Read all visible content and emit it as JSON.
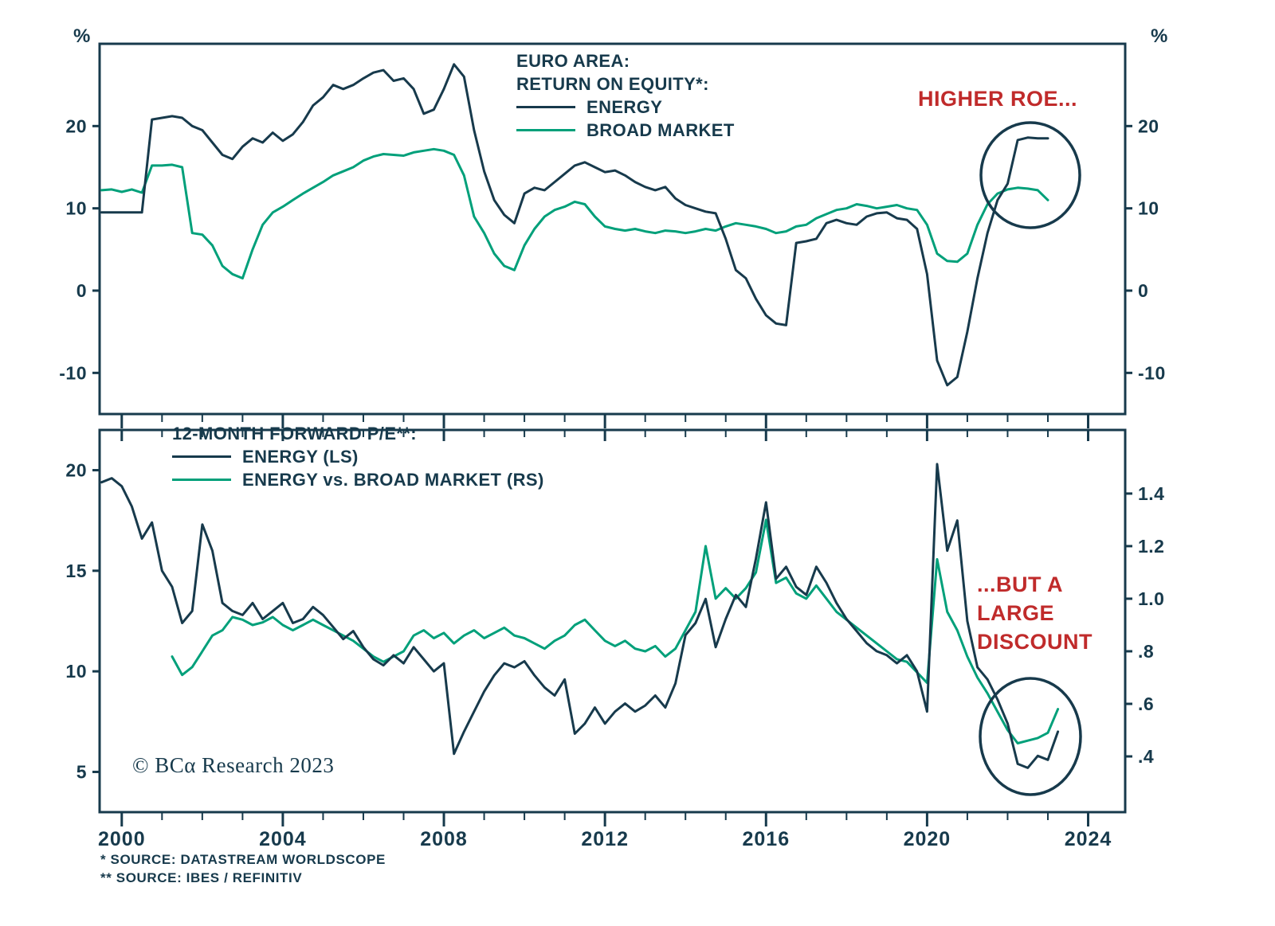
{
  "figure": {
    "background": "#ffffff",
    "colors": {
      "navy": "#173a4c",
      "teal": "#00a07a",
      "red": "#c02b2b"
    },
    "copyright": "© BCα Research 2023",
    "footnotes": [
      "*  SOURCE: DATASTREAM WORLDSCOPE",
      "** SOURCE: IBES / REFINITIV"
    ]
  },
  "annotations": {
    "higher_roe": "HIGHER ROE...",
    "discount_lines": [
      "...BUT A",
      "LARGE",
      "DISCOUNT"
    ]
  },
  "chart_data": [
    {
      "type": "line",
      "panel": "top",
      "title": "EURO AREA: RETURN ON EQUITY*:",
      "title_lines": [
        "EURO AREA:",
        "RETURN ON EQUITY*:"
      ],
      "ylabel_left": "%",
      "ylabel_right": "%",
      "xlabel": "",
      "grid": false,
      "legend_position": "top-center",
      "xlim": [
        1999.45,
        2024.92
      ],
      "ylim_left": [
        -15,
        30
      ],
      "yticks_left": [
        {
          "v": 20,
          "label": "20"
        },
        {
          "v": 10,
          "label": "10"
        },
        {
          "v": 0,
          "label": "0"
        },
        {
          "v": -10,
          "label": "-10"
        }
      ],
      "yticks_right": [
        {
          "v": 20,
          "label": "20"
        },
        {
          "v": 10,
          "label": "10"
        },
        {
          "v": 0,
          "label": "0"
        },
        {
          "v": -10,
          "label": "-10"
        }
      ],
      "x_start": 1999.5,
      "x_step": 0.25,
      "series": [
        {
          "name": "ENERGY",
          "color": "navy",
          "axis": "left",
          "values": [
            9.5,
            9.5,
            9.5,
            9.5,
            9.5,
            20.8,
            21.0,
            21.2,
            21.0,
            20.0,
            19.5,
            18.0,
            16.5,
            16.0,
            17.5,
            18.5,
            18.0,
            19.2,
            18.2,
            19.0,
            20.5,
            22.5,
            23.5,
            25.0,
            24.5,
            25.0,
            25.8,
            26.5,
            26.8,
            25.5,
            25.8,
            24.5,
            21.5,
            22.0,
            24.5,
            27.5,
            26.0,
            19.5,
            14.5,
            11.0,
            9.2,
            8.2,
            11.8,
            12.5,
            12.2,
            13.2,
            14.2,
            15.2,
            15.6,
            15.0,
            14.4,
            14.6,
            14.0,
            13.2,
            12.6,
            12.2,
            12.6,
            11.2,
            10.4,
            10.0,
            9.6,
            9.4,
            6.3,
            2.5,
            1.5,
            -1.0,
            -3.0,
            -4.0,
            -4.2,
            5.8,
            6.0,
            6.3,
            8.2,
            8.6,
            8.2,
            8.0,
            9.0,
            9.4,
            9.5,
            8.8,
            8.6,
            7.5,
            2.0,
            -8.5,
            -11.5,
            -10.5,
            -5.0,
            1.5,
            7.0,
            11.0,
            13.0,
            18.3,
            18.6,
            18.5,
            18.5
          ]
        },
        {
          "name": "BROAD MARKET",
          "color": "teal",
          "axis": "left",
          "values": [
            12.2,
            12.3,
            12.0,
            12.3,
            11.9,
            15.2,
            15.2,
            15.3,
            15.0,
            7.0,
            6.8,
            5.5,
            3.0,
            2.0,
            1.5,
            5.0,
            8.0,
            9.5,
            10.2,
            11.0,
            11.8,
            12.5,
            13.2,
            14.0,
            14.5,
            15.0,
            15.8,
            16.3,
            16.6,
            16.5,
            16.4,
            16.8,
            17.0,
            17.2,
            17.0,
            16.5,
            14.0,
            9.0,
            7.0,
            4.5,
            3.0,
            2.5,
            5.5,
            7.5,
            9.0,
            9.8,
            10.2,
            10.8,
            10.5,
            9.0,
            7.8,
            7.5,
            7.3,
            7.5,
            7.2,
            7.0,
            7.3,
            7.2,
            7.0,
            7.2,
            7.5,
            7.3,
            7.8,
            8.2,
            8.0,
            7.8,
            7.5,
            7.0,
            7.2,
            7.8,
            8.0,
            8.8,
            9.3,
            9.8,
            10.0,
            10.5,
            10.3,
            10.0,
            10.2,
            10.4,
            10.0,
            9.8,
            8.0,
            4.5,
            3.6,
            3.5,
            4.5,
            8.0,
            10.5,
            11.8,
            12.3,
            12.5,
            12.4,
            12.2,
            11.0
          ]
        }
      ]
    },
    {
      "type": "line",
      "panel": "bottom",
      "title": "12-MONTH FORWARD P/E**:",
      "title_lines": [
        "12-MONTH FORWARD P/E**:"
      ],
      "xlabel": "",
      "grid": false,
      "legend_position": "top-left",
      "xlim": [
        1999.45,
        2024.92
      ],
      "xticks": [
        2000,
        2004,
        2008,
        2012,
        2016,
        2020,
        2024
      ],
      "ylim_left": [
        3,
        22
      ],
      "yticks_left": [
        {
          "v": 20,
          "label": "20"
        },
        {
          "v": 15,
          "label": "15"
        },
        {
          "v": 10,
          "label": "10"
        },
        {
          "v": 5,
          "label": "5"
        }
      ],
      "ylim_right": [
        0.188,
        1.642
      ],
      "yticks_right": [
        {
          "v": 1.4,
          "label": "1.4"
        },
        {
          "v": 1.2,
          "label": "1.2"
        },
        {
          "v": 1.0,
          "label": "1.0"
        },
        {
          "v": 0.8,
          "label": ".8"
        },
        {
          "v": 0.6,
          "label": ".6"
        },
        {
          "v": 0.4,
          "label": ".4"
        }
      ],
      "x_start": 1999.5,
      "x_step": 0.25,
      "series": [
        {
          "name": "ENERGY (LS)",
          "color": "navy",
          "axis": "left",
          "values": [
            19.4,
            19.6,
            19.2,
            18.2,
            16.6,
            17.4,
            15.0,
            14.2,
            12.4,
            13.0,
            17.3,
            16.0,
            13.4,
            13.0,
            12.8,
            13.4,
            12.6,
            13.0,
            13.4,
            12.4,
            12.6,
            13.2,
            12.8,
            12.2,
            11.6,
            12.0,
            11.2,
            10.6,
            10.3,
            10.8,
            10.4,
            11.2,
            10.6,
            10.0,
            10.4,
            5.9,
            7.0,
            8.0,
            9.0,
            9.8,
            10.4,
            10.2,
            10.5,
            9.8,
            9.2,
            8.8,
            9.6,
            6.9,
            7.4,
            8.2,
            7.4,
            8.0,
            8.4,
            8.0,
            8.3,
            8.8,
            8.2,
            9.4,
            11.8,
            12.4,
            13.6,
            11.2,
            12.6,
            13.8,
            13.2,
            15.6,
            18.4,
            14.6,
            15.2,
            14.2,
            13.8,
            15.2,
            14.4,
            13.4,
            12.6,
            12.0,
            11.4,
            11.0,
            10.8,
            10.4,
            10.8,
            10.0,
            8.0,
            20.3,
            16.0,
            17.5,
            12.5,
            10.2,
            9.6,
            8.6,
            7.4,
            5.4,
            5.2,
            5.8,
            5.6,
            7.0
          ]
        },
        {
          "name": "ENERGY vs. BROAD MARKET (RS)",
          "color": "teal",
          "axis": "right",
          "values": [
            null,
            null,
            null,
            null,
            null,
            null,
            null,
            0.78,
            0.71,
            0.74,
            0.8,
            0.86,
            0.88,
            0.93,
            0.92,
            0.9,
            0.91,
            0.93,
            0.9,
            0.88,
            0.9,
            0.92,
            0.9,
            0.88,
            0.86,
            0.84,
            0.81,
            0.78,
            0.76,
            0.78,
            0.8,
            0.86,
            0.88,
            0.85,
            0.87,
            0.83,
            0.86,
            0.88,
            0.85,
            0.87,
            0.89,
            0.86,
            0.85,
            0.83,
            0.81,
            0.84,
            0.86,
            0.9,
            0.92,
            0.88,
            0.84,
            0.82,
            0.84,
            0.81,
            0.8,
            0.82,
            0.78,
            0.81,
            0.88,
            0.95,
            1.2,
            1.0,
            1.04,
            1.0,
            1.04,
            1.1,
            1.3,
            1.06,
            1.08,
            1.02,
            1.0,
            1.05,
            1.0,
            0.95,
            0.92,
            0.89,
            0.86,
            0.83,
            0.8,
            0.77,
            0.76,
            0.72,
            0.68,
            1.15,
            0.95,
            0.88,
            0.78,
            0.7,
            0.64,
            0.57,
            0.5,
            0.45,
            0.46,
            0.47,
            0.49,
            0.58
          ]
        }
      ]
    }
  ]
}
